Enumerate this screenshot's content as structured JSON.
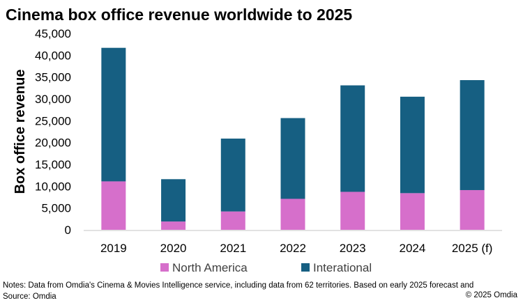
{
  "chart_data": {
    "type": "bar",
    "stacked": true,
    "title": "Cinema box office revenue worldwide to 2025",
    "xlabel": "",
    "ylabel": "Box office revenue",
    "ylim": [
      0,
      45000
    ],
    "yticks": [
      "0",
      "5,000",
      "10,000",
      "15,000",
      "20,000",
      "25,000",
      "30,000",
      "35,000",
      "40,000",
      "45,000"
    ],
    "categories": [
      "2019",
      "2020",
      "2021",
      "2022",
      "2023",
      "2024",
      "2025 (f)"
    ],
    "series": [
      {
        "name": "North America",
        "color": "#D66FCB",
        "values": [
          11100,
          1900,
          4200,
          7100,
          8700,
          8400,
          9100
        ]
      },
      {
        "name": "Interational",
        "color": "#165F82",
        "values": [
          30600,
          9700,
          16700,
          18500,
          24400,
          22100,
          25200
        ]
      }
    ],
    "grid": false,
    "legend": "bottom"
  },
  "notes": "Notes: Data from Omdia's Cinema & Movies Intelligence service, including data from 62 territories.  Based on early 2025 forecast and",
  "source": "Source: Omdia",
  "copyright": "© 2025 Omdia"
}
